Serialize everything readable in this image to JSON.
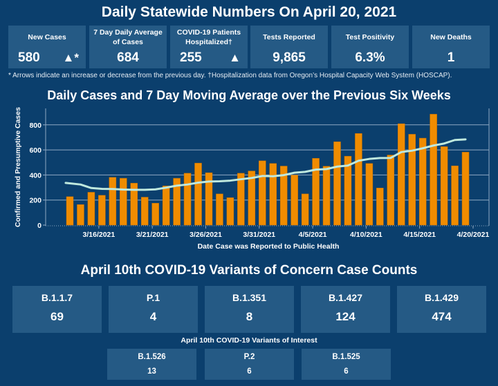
{
  "header": {
    "title": "Daily Statewide Numbers On April 20, 2021"
  },
  "stats": [
    {
      "label": "New Cases",
      "value": "580",
      "indicator": "▲*"
    },
    {
      "label": "7 Day Daily Average of Cases",
      "value": "684"
    },
    {
      "label": "COVID-19 Patients Hospitalized†",
      "value": "255",
      "indicator": "▲"
    },
    {
      "label": "Tests Reported",
      "value": "9,865"
    },
    {
      "label": "Test Positivity",
      "value": "6.3%"
    },
    {
      "label": "New Deaths",
      "value": "1"
    }
  ],
  "footnote": "* Arrows indicate an increase or decrease from the previous day. †Hospitalization data from Oregon’s Hospital Capacity Web System (HOSCAP).",
  "chart_data": {
    "type": "bar",
    "title": "Daily Cases and 7 Day Moving Average over the Previous Six Weeks",
    "xlabel": "Date Case was Reported to Public Health",
    "ylabel": "Confirmed and Presumptive Cases",
    "ylim": [
      0,
      900
    ],
    "yticks": [
      0,
      200,
      400,
      600,
      800
    ],
    "grid": true,
    "x_start": "3/13/2021",
    "x_end": "4/19/2021",
    "xtick_labels": [
      "3/16/2021",
      "3/21/2021",
      "3/26/2021",
      "3/31/2021",
      "4/5/2021",
      "4/10/2021",
      "4/15/2021",
      "4/20/2021"
    ],
    "categories": [
      "3/13",
      "3/14",
      "3/15",
      "3/16",
      "3/17",
      "3/18",
      "3/19",
      "3/20",
      "3/21",
      "3/22",
      "3/23",
      "3/24",
      "3/25",
      "3/26",
      "3/27",
      "3/28",
      "3/29",
      "3/30",
      "3/31",
      "4/1",
      "4/2",
      "4/3",
      "4/4",
      "4/5",
      "4/6",
      "4/7",
      "4/8",
      "4/9",
      "4/10",
      "4/11",
      "4/12",
      "4/13",
      "4/14",
      "4/15",
      "4/16",
      "4/17",
      "4/18",
      "4/19"
    ],
    "series": [
      {
        "name": "Daily Cases",
        "type": "bar",
        "color": "#f08c00",
        "values": [
          227,
          164,
          262,
          238,
          381,
          374,
          335,
          223,
          175,
          313,
          374,
          414,
          495,
          418,
          249,
          219,
          414,
          432,
          513,
          492,
          471,
          399,
          249,
          533,
          470,
          665,
          550,
          731,
          492,
          296,
          559,
          809,
          725,
          694,
          885,
          626,
          473,
          582
        ]
      },
      {
        "name": "7 Day Moving Average",
        "type": "line",
        "color": "#bfe9de",
        "values": [
          337,
          324,
          296,
          289,
          288,
          284,
          282,
          282,
          285,
          299,
          315,
          324,
          339,
          348,
          350,
          355,
          366,
          376,
          392,
          390,
          399,
          418,
          425,
          443,
          447,
          467,
          475,
          514,
          528,
          535,
          536,
          583,
          594,
          613,
          635,
          651,
          679,
          684
        ]
      }
    ]
  },
  "variants_of_concern": {
    "title": "April 10th  COVID-19 Variants of Concern Case Counts",
    "items": [
      {
        "name": "B.1.1.7",
        "count": "69"
      },
      {
        "name": "P.1",
        "count": "4"
      },
      {
        "name": "B.1.351",
        "count": "8"
      },
      {
        "name": "B.1.427",
        "count": "124"
      },
      {
        "name": "B.1.429",
        "count": "474"
      }
    ]
  },
  "variants_of_interest": {
    "title": "April 10th COVID-19 Variants of Interest",
    "items": [
      {
        "name": "B.1.526",
        "count": "13"
      },
      {
        "name": "P.2",
        "count": "6"
      },
      {
        "name": "B.1.525",
        "count": "6"
      }
    ]
  }
}
